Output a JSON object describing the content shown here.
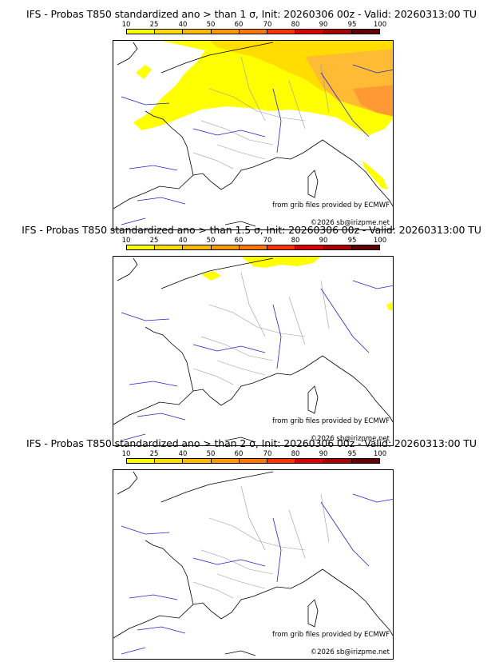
{
  "panels": [
    {
      "title": "IFS - Probas T850  standardized ano > than 1 σ, Init: 20260306 00z - Valid: 20260313:00 TU"
    },
    {
      "title": "IFS - Probas T850  standardized ano > than 1.5 σ, Init: 20260306 00z - Valid: 20260313:00 TU"
    },
    {
      "title": "IFS - Probas T850  standardized ano > than 2 σ, Init: 20260306 00z - Valid: 20260313:00 TU"
    }
  ],
  "colorbar": {
    "ticks": [
      "10",
      "25",
      "40",
      "50",
      "60",
      "70",
      "80",
      "90",
      "95",
      "100"
    ],
    "colors": [
      "#ffff00",
      "#ffdd00",
      "#ffbb00",
      "#ff9900",
      "#ff7700",
      "#ff3300",
      "#dd0000",
      "#aa0000",
      "#660000"
    ]
  },
  "credits": {
    "source": "from grib files provided by ECMWF",
    "copyright": "©2026 sb@irizpme.net"
  },
  "colors": {
    "coast": "#000000",
    "rivers": "#2222cc",
    "borders": "#999999",
    "prob_low": "#ffff00",
    "prob_mid": "#ffd700",
    "prob_high": "#ffaa22"
  }
}
